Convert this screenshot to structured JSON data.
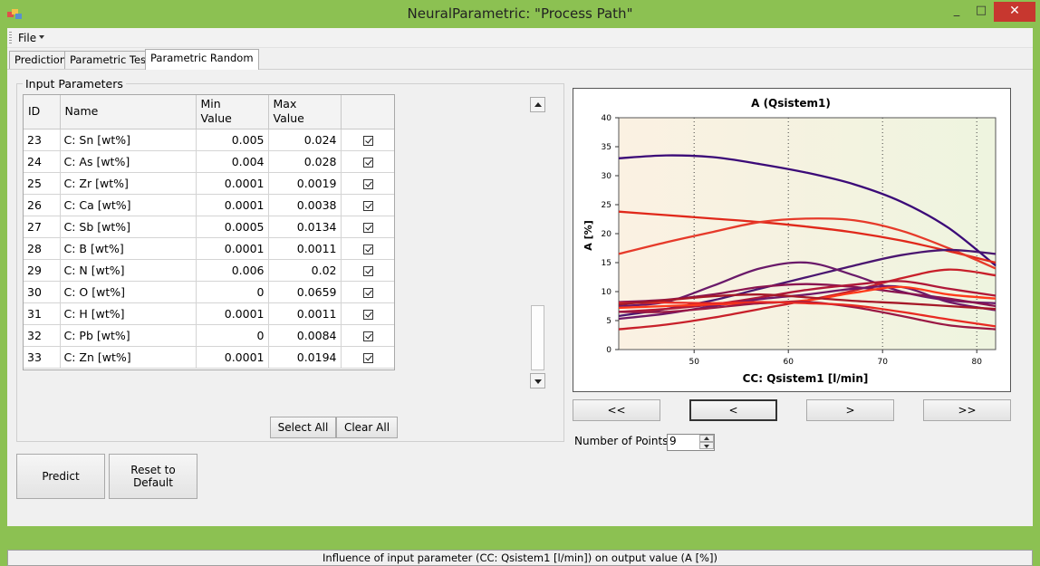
{
  "window": {
    "title": "NeuralParametric: \"Process Path\"",
    "min_glyph": "_",
    "max_glyph": "□",
    "close_glyph": "✕"
  },
  "menu": {
    "file": "File"
  },
  "tabs": [
    {
      "label": "Prediction",
      "active": false
    },
    {
      "label": "Parametric Test",
      "active": false
    },
    {
      "label": "Parametric Random",
      "active": true
    }
  ],
  "input_group": {
    "title": "Input Parameters"
  },
  "grid": {
    "headers": {
      "id": "ID",
      "name": "Name",
      "min_l1": "Min",
      "min_l2": "Value",
      "max_l1": "Max",
      "max_l2": "Value",
      "check": ""
    },
    "rows": [
      {
        "id": "23",
        "name": "C: Sn [wt%]",
        "min": "0.005",
        "max": "0.024",
        "checked": true
      },
      {
        "id": "24",
        "name": "C: As [wt%]",
        "min": "0.004",
        "max": "0.028",
        "checked": true
      },
      {
        "id": "25",
        "name": "C: Zr [wt%]",
        "min": "0.0001",
        "max": "0.0019",
        "checked": true
      },
      {
        "id": "26",
        "name": "C: Ca [wt%]",
        "min": "0.0001",
        "max": "0.0038",
        "checked": true
      },
      {
        "id": "27",
        "name": "C: Sb [wt%]",
        "min": "0.0005",
        "max": "0.0134",
        "checked": true
      },
      {
        "id": "28",
        "name": "C: B [wt%]",
        "min": "0.0001",
        "max": "0.0011",
        "checked": true
      },
      {
        "id": "29",
        "name": "C: N [wt%]",
        "min": "0.006",
        "max": "0.02",
        "checked": true
      },
      {
        "id": "30",
        "name": "C: O [wt%]",
        "min": "0",
        "max": "0.0659",
        "checked": true
      },
      {
        "id": "31",
        "name": "C: H [wt%]",
        "min": "0.0001",
        "max": "0.0011",
        "checked": true
      },
      {
        "id": "32",
        "name": "C: Pb [wt%]",
        "min": "0",
        "max": "0.0084",
        "checked": true
      },
      {
        "id": "33",
        "name": "C: Zn [wt%]",
        "min": "0.0001",
        "max": "0.0194",
        "checked": true
      }
    ]
  },
  "buttons": {
    "select_all": "Select All",
    "clear_all": "Clear All",
    "predict": "Predict",
    "reset": "Reset to Default"
  },
  "nav": {
    "first": "<<",
    "prev": "<",
    "next": ">",
    "last": ">>"
  },
  "points": {
    "label": "Number of Points:",
    "value": "9"
  },
  "status": "Influence of input parameter (CC: Qsistem1 [l/min]) on output value (A [%])",
  "chart_data": {
    "type": "line",
    "title": "A (Qsistem1)",
    "xlabel": "CC: Qsistem1 [l/min]",
    "ylabel": "A [%]",
    "xlim": [
      42,
      82
    ],
    "ylim": [
      0,
      40
    ],
    "xticks": [
      50,
      60,
      70,
      80
    ],
    "yticks": [
      0,
      5,
      10,
      15,
      20,
      25,
      30,
      35,
      40
    ],
    "grid": "vertical dotted",
    "series": [
      {
        "color": "#3b0a78",
        "x": [
          42,
          47,
          52,
          57,
          62,
          67,
          72,
          77,
          82
        ],
        "y": [
          33,
          33.5,
          33.2,
          32,
          30.5,
          28.5,
          25.5,
          21,
          14.5
        ]
      },
      {
        "color": "#e0281a",
        "x": [
          42,
          47,
          52,
          57,
          62,
          67,
          72,
          77,
          82
        ],
        "y": [
          23.8,
          23.2,
          22.6,
          22,
          21.2,
          20.2,
          18.8,
          17,
          15
        ]
      },
      {
        "color": "#e63a2a",
        "x": [
          42,
          47,
          52,
          57,
          62,
          67,
          72,
          77,
          82
        ],
        "y": [
          16.5,
          18.5,
          20.3,
          22,
          22.6,
          22.3,
          20.5,
          17.5,
          14
        ]
      },
      {
        "color": "#4a1670",
        "x": [
          42,
          47,
          52,
          57,
          62,
          67,
          72,
          77,
          82
        ],
        "y": [
          5.8,
          7,
          8.5,
          10.5,
          12.5,
          14.5,
          16.3,
          17.2,
          16.5
        ]
      },
      {
        "color": "#6a1a6a",
        "x": [
          42,
          47,
          52,
          57,
          62,
          67,
          72,
          77,
          82
        ],
        "y": [
          7.5,
          8.2,
          11,
          14,
          15,
          12.8,
          10,
          8.5,
          8
        ]
      },
      {
        "color": "#c8202a",
        "x": [
          42,
          47,
          52,
          57,
          62,
          67,
          72,
          77,
          82
        ],
        "y": [
          3.5,
          4.3,
          5.5,
          7,
          8.5,
          10.2,
          12.3,
          13.8,
          12.8
        ]
      },
      {
        "color": "#8a1450",
        "x": [
          42,
          47,
          52,
          57,
          62,
          67,
          72,
          77,
          82
        ],
        "y": [
          8.2,
          8.6,
          9.5,
          10.8,
          11.3,
          10.8,
          9.8,
          8.8,
          7.5
        ]
      },
      {
        "color": "#b01838",
        "x": [
          42,
          47,
          52,
          57,
          62,
          67,
          72,
          77,
          82
        ],
        "y": [
          6.5,
          7,
          7.8,
          9,
          10.3,
          11.2,
          11.8,
          10.5,
          9.3
        ]
      },
      {
        "color": "#701868",
        "x": [
          42,
          47,
          52,
          57,
          62,
          67,
          72,
          77,
          82
        ],
        "y": [
          5.3,
          6.2,
          7.5,
          8.7,
          9.5,
          10.5,
          10.8,
          8.2,
          6.8
        ]
      },
      {
        "color": "#ff3a1a",
        "x": [
          42,
          47,
          52,
          57,
          62,
          67,
          72,
          77,
          82
        ],
        "y": [
          7.2,
          7.5,
          7.8,
          8,
          8.5,
          9.8,
          10.8,
          9.5,
          8.8
        ]
      },
      {
        "color": "#9a1844",
        "x": [
          42,
          47,
          52,
          57,
          62,
          67,
          72,
          77,
          82
        ],
        "y": [
          6.5,
          6.5,
          7.2,
          8,
          8.2,
          7.3,
          5.8,
          4.2,
          3.5
        ]
      },
      {
        "color": "#e82a22",
        "x": [
          42,
          47,
          52,
          57,
          62,
          67,
          72,
          77,
          82
        ],
        "y": [
          8,
          8.1,
          8,
          8.2,
          8,
          7.6,
          6.5,
          5.2,
          4
        ]
      },
      {
        "color": "#a51828",
        "x": [
          42,
          47,
          52,
          57,
          62,
          67,
          72,
          77,
          82
        ],
        "y": [
          7.8,
          8.5,
          9.2,
          9.5,
          9,
          8.4,
          8,
          7.5,
          7
        ]
      }
    ]
  }
}
